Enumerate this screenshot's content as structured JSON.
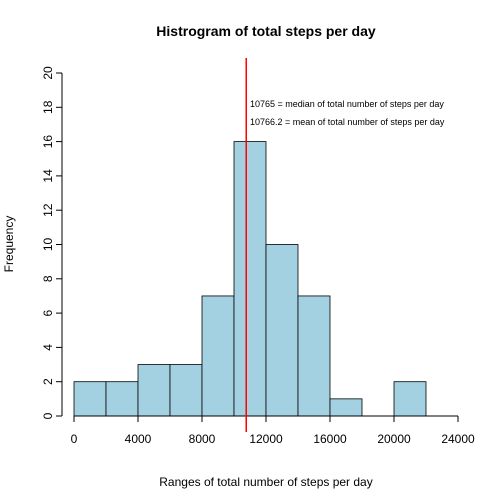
{
  "chart_data": {
    "type": "bar",
    "title": "Histrogram of total steps per day",
    "xlabel": "Ranges of total number of steps per day",
    "ylabel": "Frequency",
    "xlim": [
      0,
      24000
    ],
    "ylim": [
      0,
      20
    ],
    "x_ticks": [
      0,
      4000,
      8000,
      12000,
      16000,
      20000,
      24000
    ],
    "y_ticks": [
      0,
      2,
      4,
      6,
      8,
      10,
      12,
      14,
      16,
      18,
      20
    ],
    "bins": [
      {
        "start": 0,
        "end": 2000,
        "count": 2
      },
      {
        "start": 2000,
        "end": 4000,
        "count": 2
      },
      {
        "start": 4000,
        "end": 6000,
        "count": 3
      },
      {
        "start": 6000,
        "end": 8000,
        "count": 3
      },
      {
        "start": 8000,
        "end": 10000,
        "count": 7
      },
      {
        "start": 10000,
        "end": 12000,
        "count": 16
      },
      {
        "start": 12000,
        "end": 14000,
        "count": 10
      },
      {
        "start": 14000,
        "end": 16000,
        "count": 7
      },
      {
        "start": 16000,
        "end": 18000,
        "count": 1
      },
      {
        "start": 18000,
        "end": 20000,
        "count": 0
      },
      {
        "start": 20000,
        "end": 22000,
        "count": 2
      }
    ],
    "bar_color": "#a3d1e1",
    "median_line": {
      "x": 10765,
      "color": "#ff0000"
    },
    "annotations": [
      "10765 = median of total number of steps per day",
      "10766.2 = mean of total number of steps per day"
    ],
    "grid": false
  }
}
